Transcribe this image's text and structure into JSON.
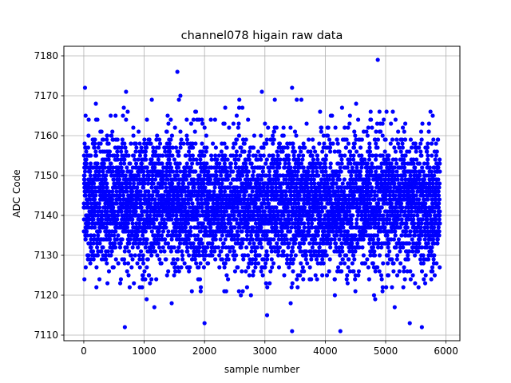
{
  "chart_data": {
    "type": "scatter",
    "title": "channel078 higain raw data",
    "xlabel": "sample number",
    "ylabel": "ADC Code",
    "xlim": [
      -330,
      6230
    ],
    "ylim": [
      7108.6,
      7182.4
    ],
    "xticks": [
      0,
      1000,
      2000,
      3000,
      4000,
      5000,
      6000
    ],
    "yticks": [
      7110,
      7120,
      7130,
      7140,
      7150,
      7160,
      7170,
      7180
    ],
    "xtick_labels": [
      "0",
      "1000",
      "2000",
      "3000",
      "4000",
      "5000",
      "6000"
    ],
    "ytick_labels": [
      "7110",
      "7120",
      "7130",
      "7140",
      "7150",
      "7160",
      "7170",
      "7180"
    ],
    "grid": true,
    "marker_color": "#0000ff",
    "series": [
      {
        "x_start": 0,
        "x_end": 5900,
        "n_points": 5900,
        "mean": 7143,
        "min": 7111,
        "max": 7179,
        "notable_points": [
          {
            "x": 20,
            "y": 7172
          },
          {
            "x": 30,
            "y": 7165
          },
          {
            "x": 700,
            "y": 7171
          },
          {
            "x": 680,
            "y": 7112
          },
          {
            "x": 1550,
            "y": 7176
          },
          {
            "x": 1600,
            "y": 7170
          },
          {
            "x": 2000,
            "y": 7113
          },
          {
            "x": 2950,
            "y": 7171
          },
          {
            "x": 3450,
            "y": 7172
          },
          {
            "x": 3450,
            "y": 7111
          },
          {
            "x": 4250,
            "y": 7111
          },
          {
            "x": 4870,
            "y": 7179
          },
          {
            "x": 5400,
            "y": 7113
          },
          {
            "x": 5600,
            "y": 7112
          },
          {
            "x": 5150,
            "y": 7117
          }
        ]
      }
    ]
  }
}
